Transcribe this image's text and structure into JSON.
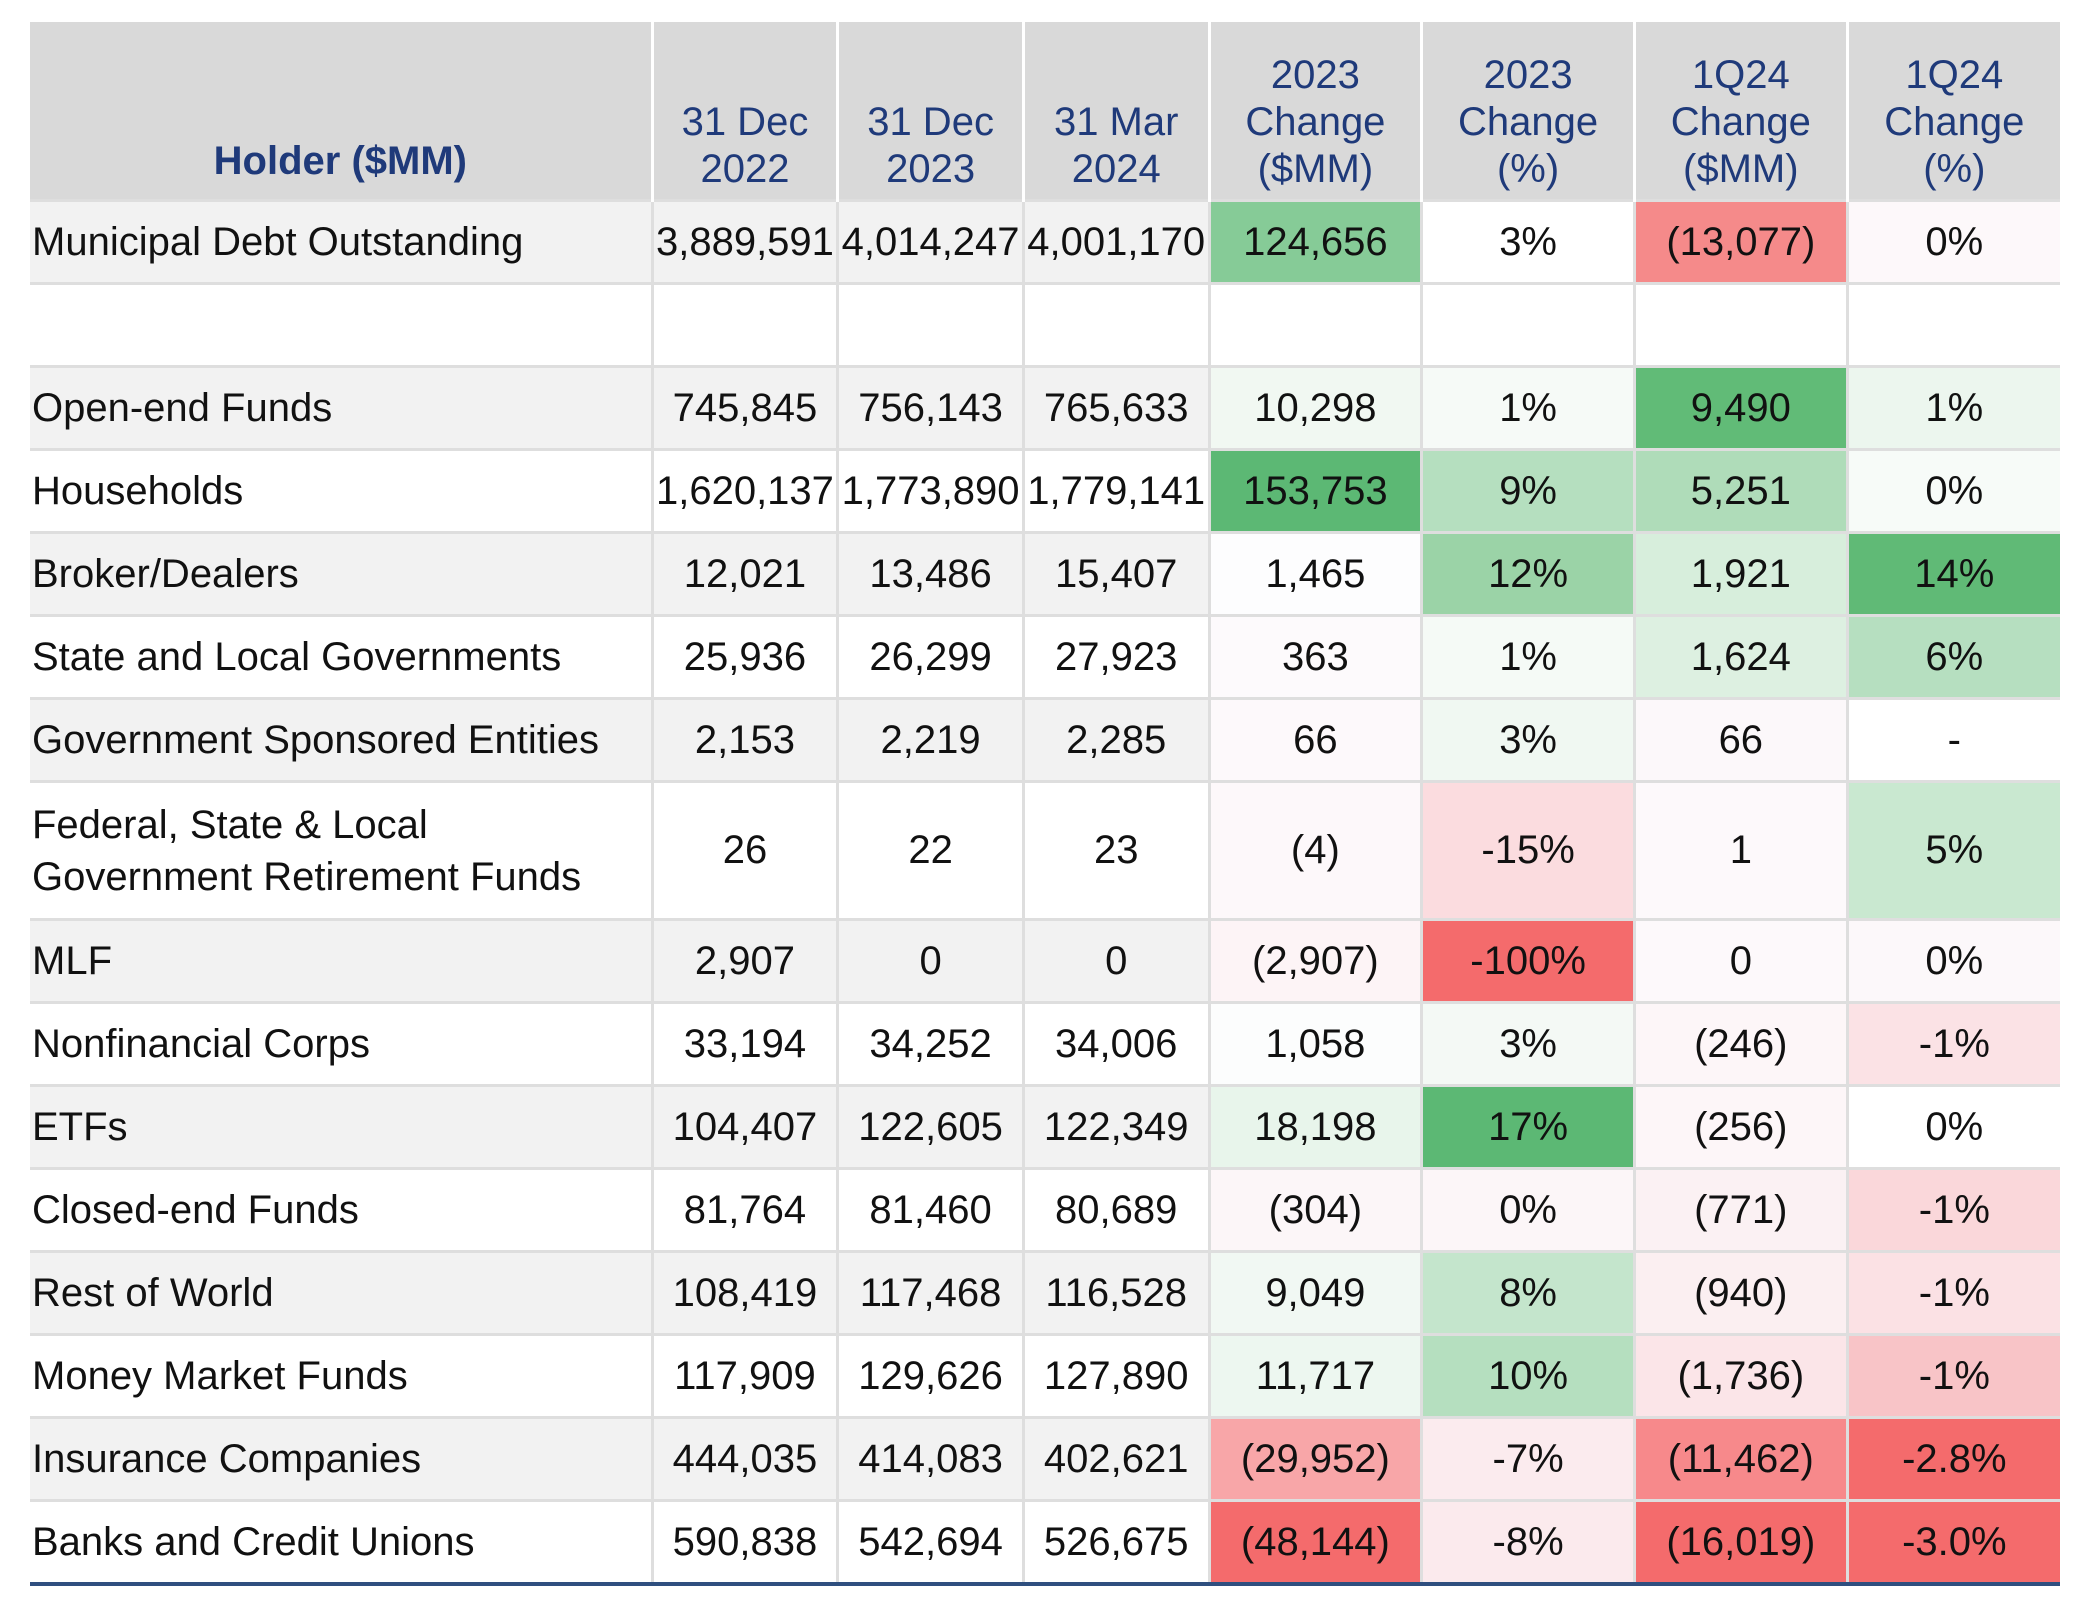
{
  "chart_data": {
    "type": "table",
    "title": "Holder ($MM)",
    "columns": [
      [
        "Holder ($MM)"
      ],
      [
        "31 Dec",
        "2022"
      ],
      [
        "31 Dec",
        "2023"
      ],
      [
        "31 Mar",
        "2024"
      ],
      [
        "2023",
        "Change",
        "($MM)"
      ],
      [
        "2023",
        "Change",
        "(%)"
      ],
      [
        "1Q24",
        "Change",
        "($MM)"
      ],
      [
        "1Q24",
        "Change",
        "(%)"
      ]
    ],
    "rows": [
      {
        "label": "Municipal Debt Outstanding",
        "values": [
          "3,889,591",
          "4,014,247",
          "4,001,170",
          "124,656",
          "3%",
          "(13,077)",
          "0%"
        ],
        "colors": [
          "",
          "",
          "",
          "#86cb97",
          "#ffffff",
          "#f58a8a",
          "#fdf8fa"
        ]
      },
      {
        "label": "",
        "values": [
          "",
          "",
          "",
          "",
          "",
          "",
          ""
        ],
        "colors": [
          "",
          "",
          "",
          "",
          "",
          "",
          ""
        ]
      },
      {
        "label": "Open-end Funds",
        "values": [
          "745,845",
          "756,143",
          "765,633",
          "10,298",
          "1%",
          "9,490",
          "1%"
        ],
        "colors": [
          "",
          "",
          "",
          "#f1f8f2",
          "#f6faf7",
          "#61bb77",
          "#ecf6ee"
        ]
      },
      {
        "label": "Households",
        "values": [
          "1,620,137",
          "1,773,890",
          "1,779,141",
          "153,753",
          "9%",
          "5,251",
          "0%"
        ],
        "colors": [
          "",
          "",
          "",
          "#5cb874",
          "#b5dfbf",
          "#afdcb9",
          "#f7fbf8"
        ]
      },
      {
        "label": "Broker/Dealers",
        "values": [
          "12,021",
          "13,486",
          "15,407",
          "1,465",
          "12%",
          "1,921",
          "14%"
        ],
        "colors": [
          "",
          "",
          "",
          "#fdfdfe",
          "#9bd3a7",
          "#d7eedc",
          "#60ba76"
        ]
      },
      {
        "label": "State and Local Governments",
        "values": [
          "25,936",
          "26,299",
          "27,923",
          "363",
          "1%",
          "1,624",
          "6%"
        ],
        "colors": [
          "",
          "",
          "",
          "#fdfafc",
          "#f5faf6",
          "#ddf0e1",
          "#b6dfc0"
        ]
      },
      {
        "label": "Government Sponsored Entities",
        "values": [
          "2,153",
          "2,219",
          "2,285",
          "66",
          "3%",
          "66",
          "-"
        ],
        "colors": [
          "",
          "",
          "",
          "#fdf9fb",
          "#f0f8f2",
          "#fcf8fa",
          "#ffffff"
        ]
      },
      {
        "label": "Federal, State & Local Government Retirement Funds",
        "values": [
          "26",
          "22",
          "23",
          "(4)",
          "-15%",
          "1",
          "5%"
        ],
        "colors": [
          "",
          "",
          "",
          "#fdf8fa",
          "#fbdcdf",
          "#fdf9fb",
          "#c9e8d0"
        ]
      },
      {
        "label": "MLF",
        "values": [
          "2,907",
          "0",
          "0",
          "(2,907)",
          "-100%",
          "0",
          "0%"
        ],
        "colors": [
          "",
          "",
          "",
          "#fdf4f6",
          "#f46b6c",
          "#fdf9fb",
          "#fcf8fa"
        ]
      },
      {
        "label": "Nonfinancial Corps",
        "values": [
          "33,194",
          "34,252",
          "34,006",
          "1,058",
          "3%",
          "(246)",
          "-1%"
        ],
        "colors": [
          "",
          "",
          "",
          "#fcfdfd",
          "#f4f9f5",
          "#fdf6f8",
          "#fbe2e5"
        ]
      },
      {
        "label": "ETFs",
        "values": [
          "104,407",
          "122,605",
          "122,349",
          "18,198",
          "17%",
          "(256)",
          "0%"
        ],
        "colors": [
          "",
          "",
          "",
          "#e8f5eb",
          "#5cb874",
          "#fdf6f8",
          "#ffffff"
        ]
      },
      {
        "label": "Closed-end Funds",
        "values": [
          "81,764",
          "81,460",
          "80,689",
          "(304)",
          "0%",
          "(771)",
          "-1%"
        ],
        "colors": [
          "",
          "",
          "",
          "#fcf6f8",
          "#fcf6f8",
          "#fbf1f3",
          "#fad7da"
        ]
      },
      {
        "label": "Rest of World",
        "values": [
          "108,419",
          "117,468",
          "116,528",
          "9,049",
          "8%",
          "(940)",
          "-1%"
        ],
        "colors": [
          "",
          "",
          "",
          "#f1f8f3",
          "#c4e5cc",
          "#fbeff1",
          "#fbe1e4"
        ]
      },
      {
        "label": "Money Market Funds",
        "values": [
          "117,909",
          "129,626",
          "127,890",
          "11,717",
          "10%",
          "(1,736)",
          "-1%"
        ],
        "colors": [
          "",
          "",
          "",
          "#edf7f0",
          "#b5dfbf",
          "#fbe5e8",
          "#f8c4c7"
        ]
      },
      {
        "label": "Insurance Companies",
        "values": [
          "444,035",
          "414,083",
          "402,621",
          "(29,952)",
          "-7%",
          "(11,462)",
          "-2.8%"
        ],
        "colors": [
          "",
          "",
          "",
          "#f8a6a8",
          "#fbebee",
          "#f7898b",
          "#f46b6c"
        ]
      },
      {
        "label": "Banks and Credit Unions",
        "values": [
          "590,838",
          "542,694",
          "526,675",
          "(48,144)",
          "-8%",
          "(16,019)",
          "-3.0%"
        ],
        "colors": [
          "",
          "",
          "",
          "#f46b6c",
          "#fbeaed",
          "#f46b6c",
          "#f46b6c"
        ]
      }
    ]
  }
}
